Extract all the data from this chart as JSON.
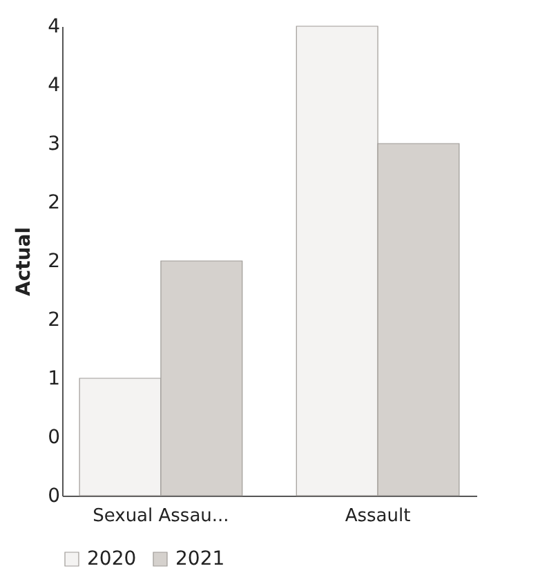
{
  "chart_data": {
    "type": "bar",
    "ylabel": "Actual",
    "categories": [
      "Sexual Assau...",
      "Assault"
    ],
    "series": [
      {
        "name": "2020",
        "color": "#f4f3f2",
        "values": [
          1,
          4
        ]
      },
      {
        "name": "2021",
        "color": "#d5d1cd",
        "values": [
          2,
          3
        ]
      }
    ],
    "ylim": [
      0,
      4
    ],
    "yticks": [
      {
        "value": 0,
        "label": "0"
      },
      {
        "value": 0.5,
        "label": "0"
      },
      {
        "value": 1,
        "label": "1"
      },
      {
        "value": 1.5,
        "label": "2"
      },
      {
        "value": 2,
        "label": "2"
      },
      {
        "value": 2.5,
        "label": "2"
      },
      {
        "value": 3,
        "label": "3"
      },
      {
        "value": 3.5,
        "label": "4"
      },
      {
        "value": 4,
        "label": "4"
      }
    ],
    "grid": false,
    "legend": "bottom"
  }
}
